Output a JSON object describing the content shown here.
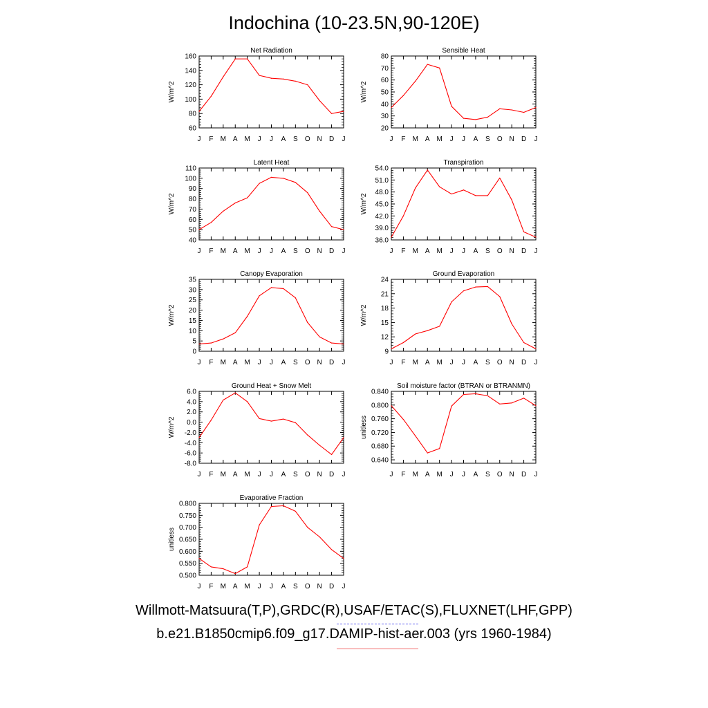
{
  "title": "Indochina (10-23.5N,90-120E)",
  "legend": {
    "observations": "Willmott-Matsuura(T,P),GRDC(R),USAF/ETAC(S),FLUXNET(LHF,GPP)",
    "model": "b.e21.B1850cmip6.f09_g17.DAMIP-hist-aer.003 (yrs 1960-1984)",
    "observations_color": "#5b5bf0",
    "model_color": "#ff0000"
  },
  "chart_data": [
    {
      "type": "line",
      "title": "Net Radiation",
      "ylabel": "W/m^2",
      "categories": [
        "J",
        "F",
        "M",
        "A",
        "M",
        "J",
        "J",
        "A",
        "S",
        "O",
        "N",
        "D",
        "J"
      ],
      "ylim": [
        60,
        160
      ],
      "yticks": [
        "60",
        "80",
        "100",
        "120",
        "140",
        "160"
      ],
      "series": [
        {
          "values": [
            83,
            104,
            131,
            156,
            156,
            133,
            129,
            128,
            125,
            120,
            98,
            80,
            83
          ]
        }
      ]
    },
    {
      "type": "line",
      "title": "Sensible Heat",
      "ylabel": "W/m^2",
      "categories": [
        "J",
        "F",
        "M",
        "A",
        "M",
        "J",
        "J",
        "A",
        "S",
        "O",
        "N",
        "D",
        "J"
      ],
      "ylim": [
        20,
        80
      ],
      "yticks": [
        "20",
        "30",
        "40",
        "50",
        "60",
        "70",
        "80"
      ],
      "series": [
        {
          "values": [
            37,
            47,
            59,
            73,
            70,
            38,
            28,
            27,
            29,
            36,
            35,
            33,
            37
          ]
        }
      ]
    },
    {
      "type": "line",
      "title": "Latent Heat",
      "ylabel": "W/m^2",
      "categories": [
        "J",
        "F",
        "M",
        "A",
        "M",
        "J",
        "J",
        "A",
        "S",
        "O",
        "N",
        "D",
        "J"
      ],
      "ylim": [
        40,
        110
      ],
      "yticks": [
        "40",
        "50",
        "60",
        "70",
        "80",
        "90",
        "100",
        "110"
      ],
      "series": [
        {
          "values": [
            50,
            57,
            68,
            76,
            81,
            95,
            101,
            100,
            96,
            86,
            68,
            53,
            50
          ]
        }
      ]
    },
    {
      "type": "line",
      "title": "Transpiration",
      "ylabel": "W/m^2",
      "categories": [
        "J",
        "F",
        "M",
        "A",
        "M",
        "J",
        "J",
        "A",
        "S",
        "O",
        "N",
        "D",
        "J"
      ],
      "ylim": [
        36,
        54
      ],
      "yticks": [
        "36.0",
        "39.0",
        "42.0",
        "45.0",
        "48.0",
        "51.0",
        "54.0"
      ],
      "series": [
        {
          "values": [
            36.7,
            42,
            49,
            53.5,
            49.3,
            47.5,
            48.5,
            47.1,
            47.1,
            51.5,
            46,
            38,
            36.7
          ]
        }
      ]
    },
    {
      "type": "line",
      "title": "Canopy Evaporation",
      "ylabel": "W/m^2",
      "categories": [
        "J",
        "F",
        "M",
        "A",
        "M",
        "J",
        "J",
        "A",
        "S",
        "O",
        "N",
        "D",
        "J"
      ],
      "ylim": [
        0,
        35
      ],
      "yticks": [
        "0",
        "5",
        "10",
        "15",
        "20",
        "25",
        "30",
        "35"
      ],
      "series": [
        {
          "values": [
            3.5,
            4,
            6,
            9,
            17,
            27,
            31,
            30.5,
            26,
            14,
            7,
            4,
            3.5
          ]
        }
      ]
    },
    {
      "type": "line",
      "title": "Ground Evaporation",
      "ylabel": "W/m^2",
      "categories": [
        "J",
        "F",
        "M",
        "A",
        "M",
        "J",
        "J",
        "A",
        "S",
        "O",
        "N",
        "D",
        "J"
      ],
      "ylim": [
        9,
        24
      ],
      "yticks": [
        "9",
        "12",
        "15",
        "18",
        "21",
        "24"
      ],
      "series": [
        {
          "values": [
            9.5,
            10.8,
            12.6,
            13.3,
            14.2,
            19.3,
            21.6,
            22.4,
            22.5,
            20.4,
            14.7,
            10.8,
            9.5
          ]
        }
      ]
    },
    {
      "type": "line",
      "title": "Ground Heat + Snow Melt",
      "ylabel": "W/m^2",
      "categories": [
        "J",
        "F",
        "M",
        "A",
        "M",
        "J",
        "J",
        "A",
        "S",
        "O",
        "N",
        "D",
        "J"
      ],
      "ylim": [
        -8,
        6
      ],
      "yticks": [
        "-8.0",
        "-6.0",
        "-4.0",
        "-2.0",
        "0.0",
        "2.0",
        "4.0",
        "6.0"
      ],
      "series": [
        {
          "values": [
            -3,
            0.4,
            4.3,
            5.7,
            4,
            0.7,
            0.2,
            0.6,
            -0.1,
            -2.5,
            -4.5,
            -6.3,
            -3
          ]
        }
      ]
    },
    {
      "type": "line",
      "title": "Soil moisture factor (BTRAN or BTRANMN)",
      "ylabel": "unitless",
      "categories": [
        "J",
        "F",
        "M",
        "A",
        "M",
        "J",
        "J",
        "A",
        "S",
        "O",
        "N",
        "D",
        "J"
      ],
      "ylim": [
        0.63,
        0.84
      ],
      "yticks": [
        "0.640",
        "0.680",
        "0.720",
        "0.760",
        "0.800",
        "0.840"
      ],
      "series": [
        {
          "values": [
            0.798,
            0.758,
            0.71,
            0.66,
            0.673,
            0.797,
            0.831,
            0.833,
            0.827,
            0.803,
            0.806,
            0.82,
            0.798
          ]
        }
      ]
    },
    {
      "type": "line",
      "title": "Evaporative Fraction",
      "ylabel": "unitless",
      "categories": [
        "J",
        "F",
        "M",
        "A",
        "M",
        "J",
        "J",
        "A",
        "S",
        "O",
        "N",
        "D",
        "J"
      ],
      "ylim": [
        0.5,
        0.8
      ],
      "yticks": [
        "0.500",
        "0.550",
        "0.600",
        "0.650",
        "0.700",
        "0.750",
        "0.800"
      ],
      "series": [
        {
          "values": [
            0.57,
            0.535,
            0.527,
            0.507,
            0.535,
            0.71,
            0.787,
            0.79,
            0.767,
            0.7,
            0.66,
            0.607,
            0.57
          ]
        }
      ]
    }
  ]
}
